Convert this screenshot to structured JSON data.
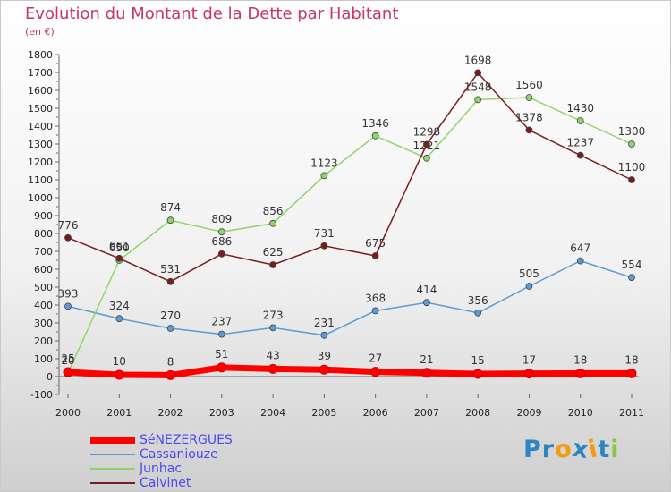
{
  "title": "Evolution du Montant de la Dette par Habitant",
  "subtitle": "(en €)",
  "chart_data": {
    "type": "line",
    "x": [
      "2000",
      "2001",
      "2002",
      "2003",
      "2004",
      "2005",
      "2006",
      "2007",
      "2008",
      "2009",
      "2010",
      "2011"
    ],
    "ylim": [
      -100,
      1800
    ],
    "yticks": [
      -100,
      0,
      100,
      200,
      300,
      400,
      500,
      600,
      700,
      800,
      900,
      1000,
      1100,
      1200,
      1300,
      1400,
      1500,
      1600,
      1700,
      1800
    ],
    "xlabel": "",
    "ylabel": "",
    "grid": false,
    "legend_position": "bottom-left",
    "series": [
      {
        "name": "SéNEZERGUES",
        "color": "#ff0000",
        "values": [
          25,
          10,
          8,
          51,
          43,
          39,
          27,
          21,
          15,
          17,
          18,
          18
        ]
      },
      {
        "name": "Cassaniouze",
        "color": "#5b9bd5",
        "values": [
          393,
          324,
          270,
          237,
          273,
          231,
          368,
          414,
          356,
          505,
          647,
          554
        ]
      },
      {
        "name": "Junhac",
        "color": "#8fd56a",
        "values": [
          20,
          650,
          874,
          809,
          856,
          1123,
          1346,
          1221,
          1548,
          1560,
          1430,
          1300
        ]
      },
      {
        "name": "Calvinet",
        "color": "#7b1c1c",
        "values": [
          776,
          661,
          531,
          686,
          625,
          731,
          675,
          1298,
          1698,
          1378,
          1237,
          1100
        ]
      }
    ]
  },
  "logo": {
    "letters": [
      "P",
      "r",
      "o",
      "x",
      "i",
      "t",
      "i"
    ],
    "colors": [
      "#2e86c1",
      "#2e86c1",
      "#f39c12",
      "#2e86c1",
      "#f39c12",
      "#2e86c1",
      "#8cc63f"
    ]
  }
}
